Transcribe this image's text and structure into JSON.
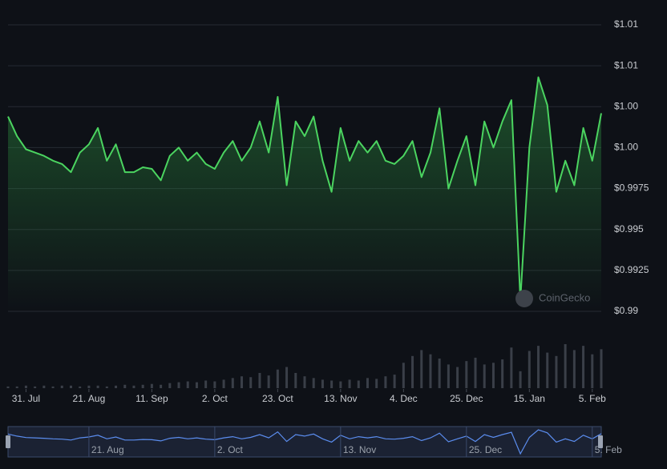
{
  "chart_data": {
    "type": "line",
    "categories": [
      null,
      null,
      "31. Jul",
      null,
      null,
      null,
      null,
      null,
      null,
      "21. Aug",
      null,
      null,
      null,
      null,
      null,
      null,
      "11. Sep",
      null,
      null,
      null,
      null,
      null,
      null,
      "2. Oct",
      null,
      null,
      null,
      null,
      null,
      null,
      "23. Oct",
      null,
      null,
      null,
      null,
      null,
      null,
      "13. Nov",
      null,
      null,
      null,
      null,
      null,
      null,
      "4. Dec",
      null,
      null,
      null,
      null,
      null,
      null,
      "25. Dec",
      null,
      null,
      null,
      null,
      null,
      null,
      "15. Jan",
      null,
      null,
      null,
      null,
      null,
      null,
      "5. Feb",
      null
    ],
    "series": [
      {
        "color": "#4bd460",
        "values": [
          1.0019,
          1.0007,
          0.9999,
          0.9997,
          0.9995,
          0.9992,
          0.999,
          0.9985,
          0.9997,
          1.0002,
          1.0012,
          0.9992,
          1.0002,
          0.9985,
          0.9985,
          0.9988,
          0.9987,
          0.998,
          0.9995,
          1.0,
          0.9992,
          0.9997,
          0.999,
          0.9987,
          0.9997,
          1.0004,
          0.9992,
          1.0,
          1.0016,
          0.9997,
          1.0031,
          0.9977,
          1.0016,
          1.0007,
          1.0019,
          0.9992,
          0.9973,
          1.0012,
          0.9992,
          1.0004,
          0.9997,
          1.0004,
          0.9992,
          0.999,
          0.9995,
          1.0004,
          0.9982,
          0.9997,
          1.0024,
          0.9975,
          0.9992,
          1.0007,
          0.9977,
          1.0016,
          1.0,
          1.0016,
          1.0029,
          0.9907,
          1.0,
          1.0043,
          1.0026,
          0.9973,
          0.9992,
          0.9977,
          1.0012,
          0.9992,
          1.0021
        ]
      }
    ],
    "ylim": [
      0.99,
      1.0075
    ],
    "yticks": [
      {
        "value": 0.99,
        "label": "$0.99"
      },
      {
        "value": 0.9925,
        "label": "$0.9925"
      },
      {
        "value": 0.995,
        "label": "$0.995"
      },
      {
        "value": 0.9975,
        "label": "$0.9975"
      },
      {
        "value": 1.0,
        "label": "$1.00"
      },
      {
        "value": 1.0025,
        "label": "$1.00"
      },
      {
        "value": 1.005,
        "label": "$1.01"
      },
      {
        "value": 1.0075,
        "label": "$1.01"
      }
    ],
    "grid": true,
    "volume": {
      "color": "#3a3f48",
      "values": [
        2,
        2,
        3,
        2,
        3,
        2,
        3,
        3,
        2,
        3,
        3,
        2,
        3,
        4,
        3,
        4,
        5,
        4,
        6,
        7,
        8,
        7,
        9,
        8,
        10,
        12,
        14,
        13,
        18,
        15,
        22,
        25,
        18,
        14,
        12,
        10,
        9,
        8,
        10,
        9,
        12,
        11,
        14,
        16,
        30,
        38,
        45,
        40,
        35,
        28,
        25,
        32,
        36,
        28,
        30,
        34,
        48,
        20,
        44,
        50,
        42,
        38,
        52,
        45,
        50,
        40,
        46
      ]
    },
    "navigator": {
      "color": "#5b8def",
      "ticks": [
        "21. Aug",
        "2. Oct",
        "13. Nov",
        "25. Dec",
        "5. Feb"
      ]
    },
    "watermark": "CoinGecko"
  }
}
